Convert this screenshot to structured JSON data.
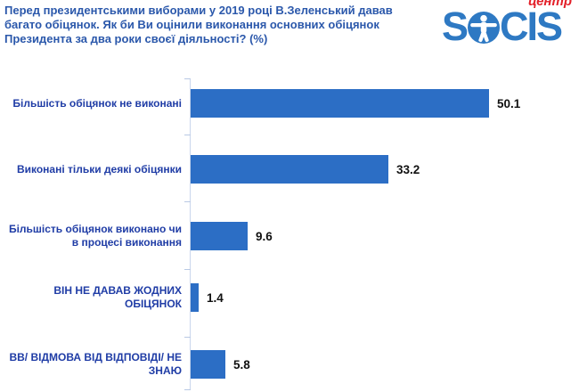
{
  "header": {
    "title": "Перед президентськими виборами у 2019 році В.Зеленський давав\nбагато обіцянок. Як би Ви оцінили виконання основних обіцянок\nПрезидента за два роки своєї діяльності?  (%)"
  },
  "logo": {
    "name": "SOCIS",
    "text_s": "S",
    "text_cis": "CIS",
    "center_label": "центр",
    "logo_color": "#2e79c3",
    "center_label_color": "#e32029"
  },
  "chart_data": {
    "type": "bar",
    "orientation": "horizontal",
    "title": "Перед президентськими виборами у 2019 році В.Зеленський давав багато обіцянок. Як би Ви оцінили виконання основних обіцянок Президента за два роки своєї діяльності? (%)",
    "unit": "%",
    "categories": [
      "Більшість обіцянок не виконані",
      "Виконані тільки деякі обіцянки",
      "Більшість обіцянок виконано чи\nв процесі виконання",
      "ВІН НЕ ДАВАВ ЖОДНИХ\nОБІЦЯНОК",
      "ВВ/ ВІДМОВА ВІД ВІДПОВІДІ/ НЕ\nЗНАЮ"
    ],
    "values": [
      50.1,
      33.2,
      9.6,
      1.4,
      5.8
    ],
    "value_labels": [
      "50.1",
      "33.2",
      "9.6",
      "1.4",
      "5.8"
    ],
    "xlim": [
      0,
      52
    ],
    "bar_color": "#2c6ec5",
    "grid": false,
    "legend": false
  }
}
